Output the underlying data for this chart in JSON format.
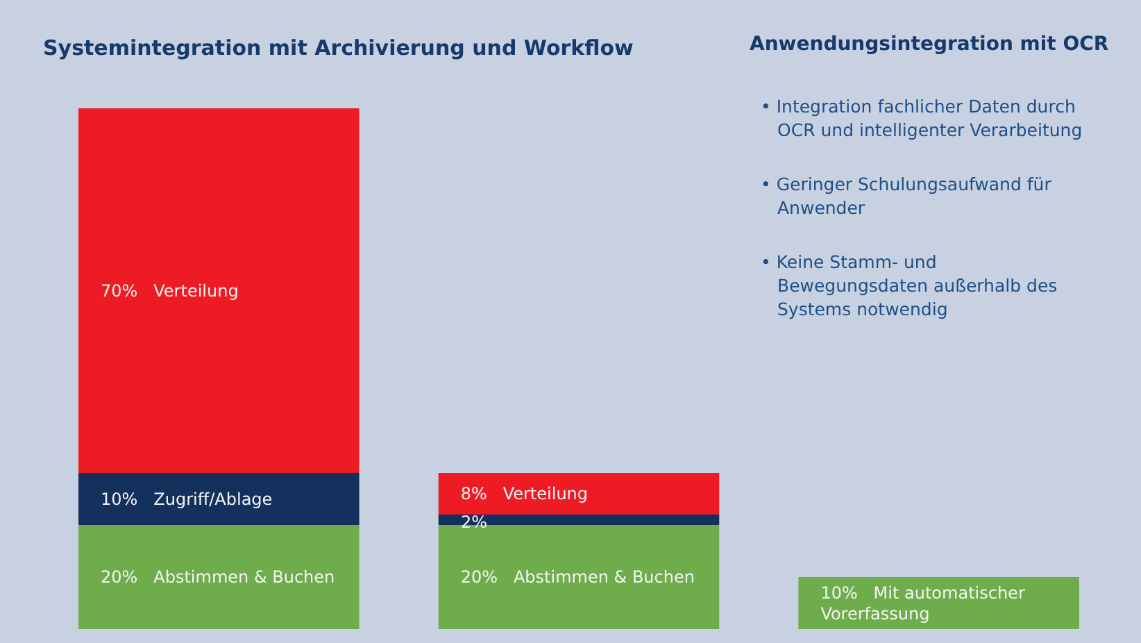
{
  "chart_data": [
    {
      "type": "bar",
      "title": "Systemintegration mit Archivierung und Workflow",
      "categories": [
        null,
        null,
        null
      ],
      "stacked": true,
      "series": [
        {
          "color": "#6fac4c",
          "values": [
            20,
            20,
            10
          ],
          "value_labels": [
            "20%   Abstimmen & Buchen",
            "20%   Abstimmen & Buchen",
            "10%   Mit automatischer\nVorerfassung"
          ]
        },
        {
          "color": "#14315e",
          "values": [
            10,
            2,
            null
          ],
          "value_labels": [
            "10%   Zugriff/Ablage",
            "2%",
            null
          ]
        },
        {
          "color": "#ed1c24",
          "values": [
            70,
            8,
            null
          ],
          "value_labels": [
            "70%   Verteilung",
            "8%   Verteilung",
            null
          ]
        }
      ]
    },
    {
      "type": "other",
      "title": "Anwendungsintegration mit OCR",
      "annotations": [
        "• Integration fachlicher Daten durch OCR und intelligenter Verarbeitung",
        "• Geringer Schulungsaufwand für Anwender",
        "• Keine Stamm- und Bewegungsdaten außerhalb des Systems notwendig"
      ]
    }
  ]
}
